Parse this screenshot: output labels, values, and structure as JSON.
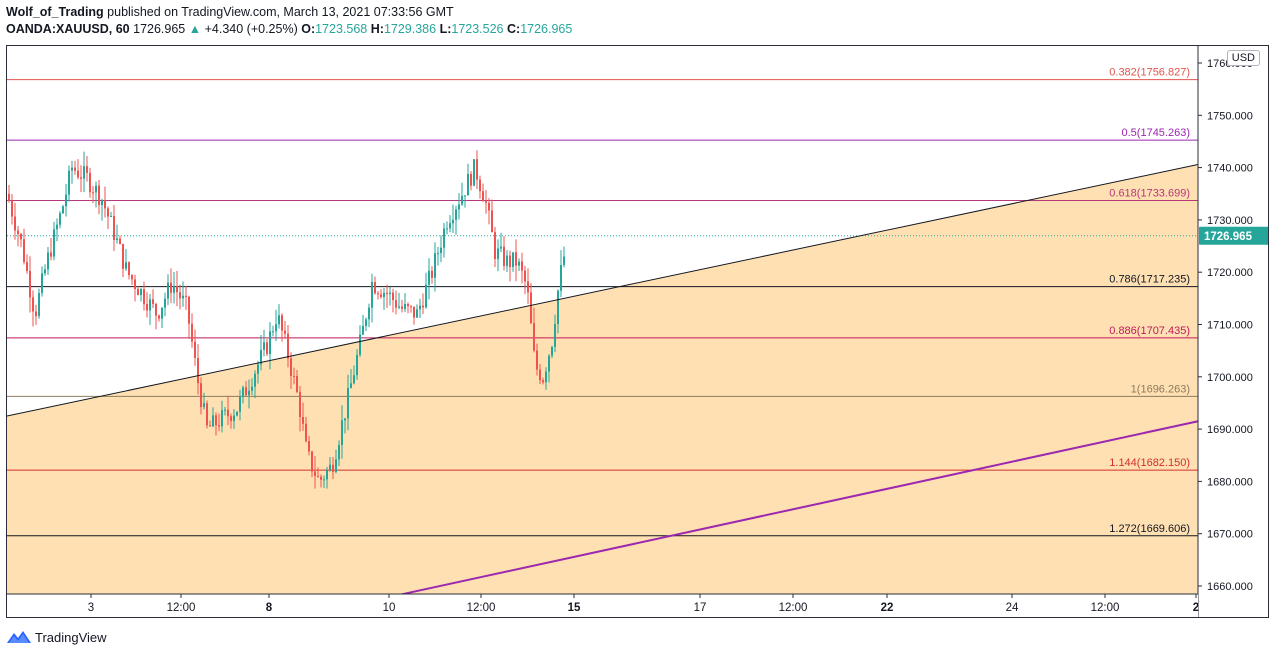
{
  "header": {
    "author": "Wolf_of_Trading",
    "published": " published on TradingView.com, March 13, 2021 07:33:56 GMT"
  },
  "symbol_bar": {
    "symbol": "OANDA:XAUUSD, 60",
    "last": "1726.965",
    "change_arrow": "▲",
    "change": "+4.340 (+0.25%)",
    "o_label": "O:",
    "o_val": "1723.568",
    "h_label": "H:",
    "h_val": "1729.386",
    "l_label": "L:",
    "l_val": "1723.526",
    "c_label": "C:",
    "c_val": "1726.965"
  },
  "price_axis": {
    "currency": "USD",
    "current_price_label": "1726.965",
    "current_price": 1726.965,
    "ticks": [
      "1760.000",
      "1750.000",
      "1740.000",
      "1730.000",
      "1720.000",
      "1710.000",
      "1700.000",
      "1690.000",
      "1680.000",
      "1670.000",
      "1660.000"
    ],
    "tick_values": [
      1760,
      1750,
      1740,
      1730,
      1720,
      1710,
      1700,
      1690,
      1680,
      1670,
      1660
    ]
  },
  "time_axis": {
    "labels": [
      "3",
      "12:00",
      "8",
      "10",
      "12:00",
      "15",
      "17",
      "12:00",
      "22",
      "24",
      "12:00",
      "2"
    ],
    "bold": [
      false,
      false,
      true,
      false,
      false,
      true,
      false,
      false,
      true,
      false,
      false,
      true
    ]
  },
  "fib_levels": [
    {
      "label": "0.382(1756.827)",
      "price": 1756.827,
      "color": "#e0544d"
    },
    {
      "label": "0.5(1745.263)",
      "price": 1745.263,
      "color": "#9c27b0"
    },
    {
      "label": "0.618(1733.699)",
      "price": 1733.699,
      "color": "#b5387a"
    },
    {
      "label": "0.786(1717.235)",
      "price": 1717.235,
      "color": "#131722"
    },
    {
      "label": "0.886(1707.435)",
      "price": 1707.435,
      "color": "#c2185b"
    },
    {
      "label": "1(1696.263)",
      "price": 1696.263,
      "color": "#8d7b5e"
    },
    {
      "label": "1.144(1682.150)",
      "price": 1682.15,
      "color": "#d32f2f"
    },
    {
      "label": "1.272(1669.606)",
      "price": 1669.606,
      "color": "#131722"
    }
  ],
  "colors": {
    "fill": "#ffe0b2",
    "up": "#26a69a",
    "down": "#ef5350",
    "trend_upper": "#131722",
    "trend_lower": "#9c27b0",
    "price_tag": "#26a69a"
  },
  "footer": {
    "brand": "TradingView"
  }
}
